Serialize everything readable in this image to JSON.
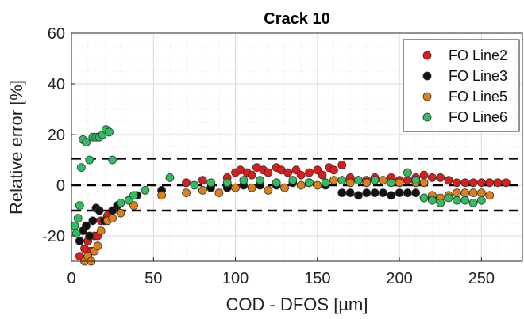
{
  "chart_data": {
    "type": "scatter",
    "title": "Crack 10",
    "xlabel": "COD - DFOS [µm]",
    "ylabel": "Relative error [%]",
    "xlim": [
      0,
      275
    ],
    "ylim": [
      -30,
      60
    ],
    "xticks": [
      0,
      50,
      100,
      150,
      200,
      250
    ],
    "yticks": [
      -20,
      0,
      20,
      40,
      60
    ],
    "grid": true,
    "legend_position": "top-right",
    "reference_lines": [
      10.5,
      0,
      -10
    ],
    "series": [
      {
        "name": "FO Line2",
        "color": "#e01b1b",
        "points": [
          [
            5,
            -28
          ],
          [
            8,
            -25
          ],
          [
            10,
            -22
          ],
          [
            12,
            -26
          ],
          [
            14,
            -20
          ],
          [
            16,
            -20
          ],
          [
            18,
            -14
          ],
          [
            22,
            -12
          ],
          [
            70,
            1
          ],
          [
            80,
            2
          ],
          [
            95,
            3
          ],
          [
            100,
            5
          ],
          [
            103,
            6
          ],
          [
            107,
            5
          ],
          [
            110,
            4
          ],
          [
            113,
            7
          ],
          [
            117,
            6
          ],
          [
            120,
            5
          ],
          [
            125,
            7
          ],
          [
            128,
            6
          ],
          [
            132,
            5
          ],
          [
            137,
            6
          ],
          [
            140,
            4
          ],
          [
            145,
            5
          ],
          [
            150,
            6
          ],
          [
            153,
            4
          ],
          [
            157,
            7
          ],
          [
            160,
            6
          ],
          [
            165,
            8
          ],
          [
            170,
            3
          ],
          [
            175,
            2
          ],
          [
            180,
            2
          ],
          [
            185,
            3
          ],
          [
            190,
            2
          ],
          [
            195,
            3
          ],
          [
            200,
            2
          ],
          [
            205,
            2
          ],
          [
            210,
            3
          ],
          [
            215,
            4
          ],
          [
            220,
            3
          ],
          [
            225,
            3
          ],
          [
            230,
            2
          ],
          [
            235,
            1
          ],
          [
            240,
            1
          ],
          [
            245,
            1
          ],
          [
            250,
            1
          ],
          [
            255,
            1
          ],
          [
            260,
            1
          ],
          [
            265,
            1
          ]
        ]
      },
      {
        "name": "FO Line3",
        "color": "#111111",
        "points": [
          [
            5,
            -22
          ],
          [
            7,
            -18
          ],
          [
            9,
            -16
          ],
          [
            11,
            -20
          ],
          [
            13,
            -14
          ],
          [
            15,
            -9
          ],
          [
            17,
            -10
          ],
          [
            20,
            -14
          ],
          [
            25,
            -10
          ],
          [
            28,
            -8
          ],
          [
            35,
            -6
          ],
          [
            40,
            -4
          ],
          [
            55,
            -2
          ],
          [
            85,
            -1
          ],
          [
            95,
            -1
          ],
          [
            105,
            0
          ],
          [
            115,
            0
          ],
          [
            125,
            0
          ],
          [
            135,
            1
          ],
          [
            145,
            1
          ],
          [
            155,
            0
          ],
          [
            165,
            -3
          ],
          [
            170,
            -3
          ],
          [
            175,
            -4
          ],
          [
            180,
            -3
          ],
          [
            185,
            -3
          ],
          [
            190,
            -3
          ],
          [
            195,
            -4
          ],
          [
            200,
            -3
          ],
          [
            205,
            -3
          ],
          [
            210,
            -3
          ],
          [
            215,
            -5
          ],
          [
            220,
            -5
          ]
        ]
      },
      {
        "name": "FO Line5",
        "color": "#e07f14",
        "points": [
          [
            8,
            -30
          ],
          [
            10,
            -28
          ],
          [
            12,
            -30
          ],
          [
            14,
            -26
          ],
          [
            16,
            -24
          ],
          [
            18,
            -18
          ],
          [
            22,
            -14
          ],
          [
            25,
            -13
          ],
          [
            30,
            -11
          ],
          [
            38,
            -8
          ],
          [
            55,
            -4
          ],
          [
            70,
            -3
          ],
          [
            80,
            -2
          ],
          [
            90,
            -3
          ],
          [
            100,
            -1
          ],
          [
            110,
            -1
          ],
          [
            120,
            -2
          ],
          [
            130,
            -1
          ],
          [
            140,
            0
          ],
          [
            150,
            0
          ],
          [
            160,
            2
          ],
          [
            170,
            1
          ],
          [
            180,
            1
          ],
          [
            190,
            2
          ],
          [
            200,
            1
          ],
          [
            210,
            1
          ],
          [
            215,
            1
          ],
          [
            220,
            -4
          ],
          [
            225,
            -5
          ],
          [
            230,
            -4
          ],
          [
            235,
            -3
          ],
          [
            240,
            -3
          ],
          [
            245,
            -3
          ],
          [
            250,
            -3
          ],
          [
            255,
            -4
          ]
        ]
      },
      {
        "name": "FO Line6",
        "color": "#2dbf5f",
        "points": [
          [
            2,
            -16
          ],
          [
            3,
            -19
          ],
          [
            4,
            -13
          ],
          [
            5,
            -8
          ],
          [
            6,
            7
          ],
          [
            7,
            18
          ],
          [
            9,
            17
          ],
          [
            11,
            10
          ],
          [
            13,
            19
          ],
          [
            15,
            19
          ],
          [
            17,
            19
          ],
          [
            19,
            20
          ],
          [
            21,
            22
          ],
          [
            23,
            21
          ],
          [
            25,
            10
          ],
          [
            30,
            -7
          ],
          [
            35,
            -6
          ],
          [
            38,
            -4
          ],
          [
            45,
            -2
          ],
          [
            60,
            3
          ],
          [
            75,
            0
          ],
          [
            85,
            1
          ],
          [
            95,
            1
          ],
          [
            105,
            2
          ],
          [
            115,
            2
          ],
          [
            125,
            1
          ],
          [
            135,
            2
          ],
          [
            145,
            1
          ],
          [
            155,
            1
          ],
          [
            165,
            2
          ],
          [
            175,
            2
          ],
          [
            185,
            2
          ],
          [
            195,
            1
          ],
          [
            205,
            5
          ],
          [
            210,
            2
          ],
          [
            215,
            -5
          ],
          [
            220,
            -6
          ],
          [
            225,
            -7
          ],
          [
            230,
            -5
          ],
          [
            235,
            -6
          ],
          [
            240,
            -6
          ],
          [
            245,
            -7
          ],
          [
            250,
            -6
          ]
        ]
      }
    ]
  }
}
